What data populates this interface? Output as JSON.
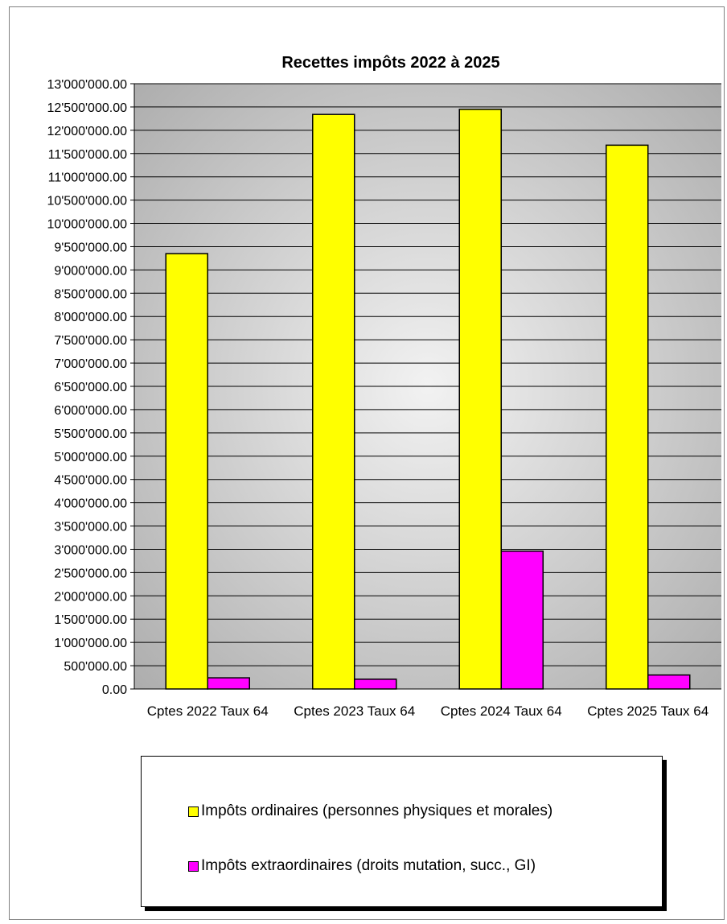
{
  "chart_data": {
    "type": "bar",
    "title": "Recettes impôts 2022 à 2025",
    "categories": [
      "Cptes 2022 Taux 64",
      "Cptes 2023 Taux 64",
      "Cptes 2024 Taux 64",
      "Cptes 2025 Taux 64"
    ],
    "series": [
      {
        "name": "Impôts ordinaires (personnes physiques et morales)",
        "color": "#ffff00",
        "values": [
          9350000,
          12340000,
          12450000,
          11680000
        ]
      },
      {
        "name": "Impôts extraordinaires (droits mutation, succ., GI)",
        "color": "#ff00ff",
        "values": [
          240000,
          210000,
          2960000,
          300000
        ]
      }
    ],
    "ylim": [
      0,
      13000000
    ],
    "ytick_step": 500000,
    "yticks": [
      "0.00",
      "500'000.00",
      "1'000'000.00",
      "1'500'000.00",
      "2'000'000.00",
      "2'500'000.00",
      "3'000'000.00",
      "3'500'000.00",
      "4'000'000.00",
      "4'500'000.00",
      "5'000'000.00",
      "5'500'000.00",
      "6'000'000.00",
      "6'500'000.00",
      "7'000'000.00",
      "7'500'000.00",
      "8'000'000.00",
      "8'500'000.00",
      "9'000'000.00",
      "9'500'000.00",
      "10'000'000.00",
      "10'500'000.00",
      "11'000'000.00",
      "11'500'000.00",
      "12'000'000.00",
      "12'500'000.00",
      "13'000'000.00"
    ],
    "grid": true,
    "legend_position": "bottom"
  }
}
